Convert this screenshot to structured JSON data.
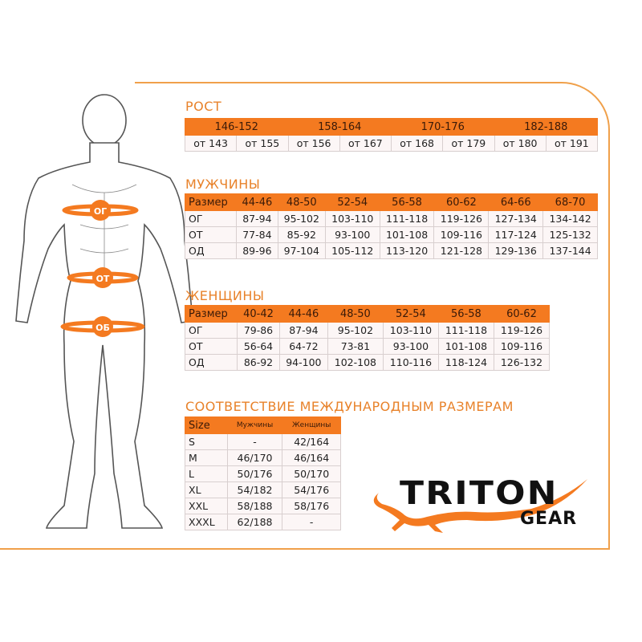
{
  "figure": {
    "bands": [
      "ОГ",
      "ОТ",
      "ОБ"
    ]
  },
  "height": {
    "title": "РОСТ",
    "groups": [
      "146-152",
      "158-164",
      "170-176",
      "182-188"
    ],
    "values": [
      "от 143",
      "от 155",
      "от 156",
      "от 167",
      "от 168",
      "от 179",
      "от 180",
      "от 191"
    ]
  },
  "men": {
    "title": "МУЖЧИНЫ",
    "header": [
      "Размер",
      "44-46",
      "48-50",
      "52-54",
      "56-58",
      "60-62",
      "64-66",
      "68-70"
    ],
    "rows": [
      [
        "ОГ",
        "87-94",
        "95-102",
        "103-110",
        "111-118",
        "119-126",
        "127-134",
        "134-142"
      ],
      [
        "ОТ",
        "77-84",
        "85-92",
        "93-100",
        "101-108",
        "109-116",
        "117-124",
        "125-132"
      ],
      [
        "ОД",
        "89-96",
        "97-104",
        "105-112",
        "113-120",
        "121-128",
        "129-136",
        "137-144"
      ]
    ]
  },
  "women": {
    "title": "ЖЕНЩИНЫ",
    "header": [
      "Размер",
      "40-42",
      "44-46",
      "48-50",
      "52-54",
      "56-58",
      "60-62"
    ],
    "rows": [
      [
        "ОГ",
        "79-86",
        "87-94",
        "95-102",
        "103-110",
        "111-118",
        "119-126"
      ],
      [
        "ОТ",
        "56-64",
        "64-72",
        "73-81",
        "93-100",
        "101-108",
        "109-116"
      ],
      [
        "ОД",
        "86-92",
        "94-100",
        "102-108",
        "110-116",
        "118-124",
        "126-132"
      ]
    ]
  },
  "international": {
    "title": "СООТВЕТСТВИЕ МЕЖДУНАРОДНЫМ РАЗМЕРАМ",
    "header": [
      "Size",
      "Мужчины",
      "Женщины"
    ],
    "rows": [
      [
        "S",
        "-",
        "42/164"
      ],
      [
        "M",
        "46/170",
        "46/164"
      ],
      [
        "L",
        "50/176",
        "50/170"
      ],
      [
        "XL",
        "54/182",
        "54/176"
      ],
      [
        "XXL",
        "58/188",
        "58/176"
      ],
      [
        "XXXL",
        "62/188",
        "-"
      ]
    ]
  },
  "logo": {
    "line1": "TRITON",
    "line2": "GEAR"
  },
  "colors": {
    "accent": "#f47a20",
    "frame": "#f0a04a",
    "cell": "#fcf6f6"
  }
}
